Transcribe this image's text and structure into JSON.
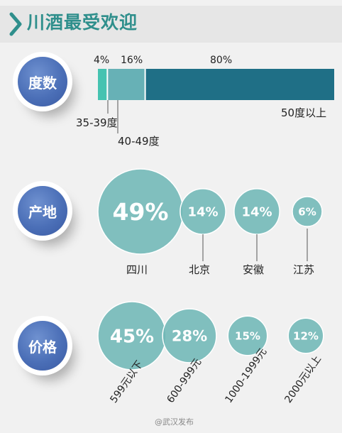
{
  "title": "川酒最受欢迎",
  "watermark": "@武汉发布",
  "colors": {
    "accent": "#2f8f8c",
    "bar_dark": "#1f6f86",
    "bar_mid": "#67b1b6",
    "bar_light": "#45c3b1",
    "circle": "#6fb7b6",
    "badge": "#4b6fb7"
  },
  "sections": {
    "degree": {
      "label": "度数"
    },
    "origin": {
      "label": "产地"
    },
    "price": {
      "label": "价格"
    }
  },
  "chart_data": [
    {
      "type": "bar",
      "orientation": "stacked-horizontal",
      "categories": [
        "35-39度",
        "40-49度",
        "50度以上"
      ],
      "values": [
        4,
        16,
        80
      ],
      "value_labels": [
        "4%",
        "16%",
        "80%"
      ],
      "unit": "%"
    },
    {
      "type": "bubble",
      "categories": [
        "四川",
        "北京",
        "安徽",
        "江苏"
      ],
      "values": [
        49,
        14,
        14,
        6
      ],
      "value_labels": [
        "49%",
        "14%",
        "14%",
        "6%"
      ],
      "unit": "%"
    },
    {
      "type": "bubble",
      "categories": [
        "599元以下",
        "600-999元",
        "1000-1999元",
        "2000元以上"
      ],
      "values": [
        45,
        28,
        15,
        12
      ],
      "value_labels": [
        "45%",
        "28%",
        "15%",
        "12%"
      ],
      "unit": "%"
    }
  ]
}
